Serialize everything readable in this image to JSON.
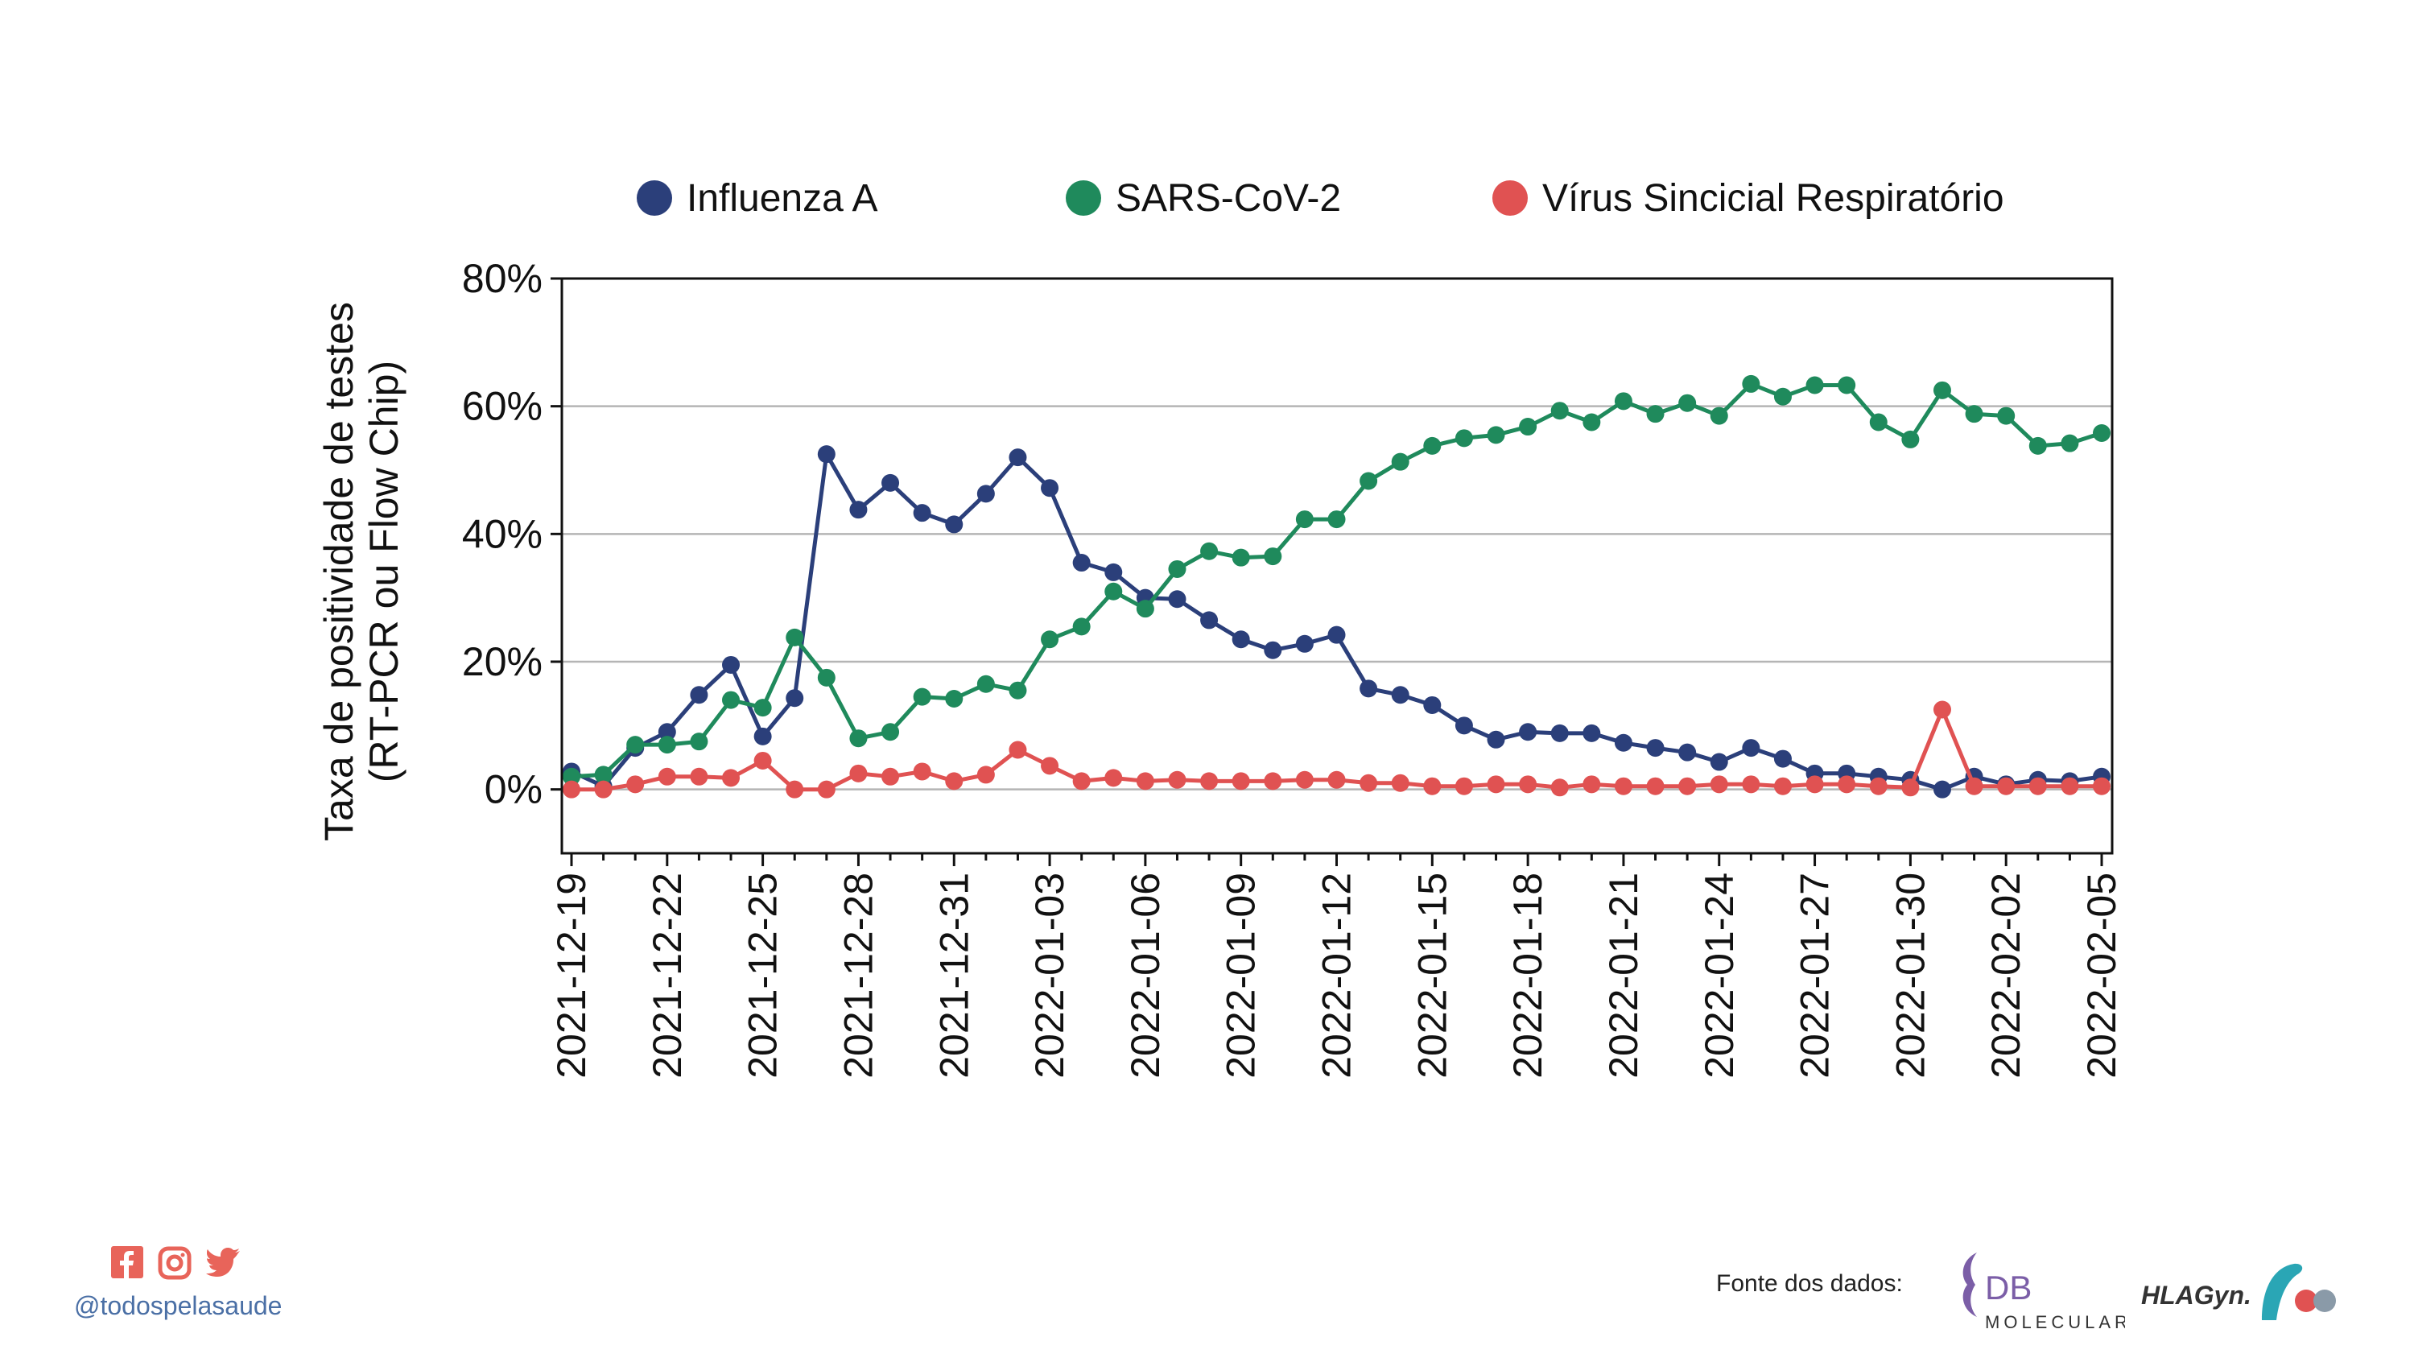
{
  "chart_data": {
    "type": "line",
    "ylabel_line1": "Taxa de positividade de testes",
    "ylabel_line2": "(RT-PCR ou Flow Chip)",
    "ylim": [
      -10,
      80
    ],
    "yticks": [
      0,
      20,
      40,
      60,
      80
    ],
    "ytick_labels": [
      "0%",
      "20%",
      "40%",
      "60%",
      "80%"
    ],
    "grid": "horizontal",
    "legend_position": "top",
    "x": [
      "2021-12-19",
      "2021-12-20",
      "2021-12-21",
      "2021-12-22",
      "2021-12-23",
      "2021-12-24",
      "2021-12-25",
      "2021-12-26",
      "2021-12-27",
      "2021-12-28",
      "2021-12-29",
      "2021-12-30",
      "2021-12-31",
      "2022-01-01",
      "2022-01-02",
      "2022-01-03",
      "2022-01-04",
      "2022-01-05",
      "2022-01-06",
      "2022-01-07",
      "2022-01-08",
      "2022-01-09",
      "2022-01-10",
      "2022-01-11",
      "2022-01-12",
      "2022-01-13",
      "2022-01-14",
      "2022-01-15",
      "2022-01-16",
      "2022-01-17",
      "2022-01-18",
      "2022-01-19",
      "2022-01-20",
      "2022-01-21",
      "2022-01-22",
      "2022-01-23",
      "2022-01-24",
      "2022-01-25",
      "2022-01-26",
      "2022-01-27",
      "2022-01-28",
      "2022-01-29",
      "2022-01-30",
      "2022-01-31",
      "2022-02-01",
      "2022-02-02",
      "2022-02-03",
      "2022-02-04",
      "2022-02-05"
    ],
    "xtick_labels": [
      "2021-12-19",
      "2021-12-22",
      "2021-12-25",
      "2021-12-28",
      "2021-12-31",
      "2022-01-03",
      "2022-01-06",
      "2022-01-09",
      "2022-01-12",
      "2022-01-15",
      "2022-01-18",
      "2022-01-21",
      "2022-01-24",
      "2022-01-27",
      "2022-01-30",
      "2022-02-02",
      "2022-02-05"
    ],
    "series": [
      {
        "name": "Influenza A",
        "color": "#2b3f7a",
        "values": [
          2.8,
          0.5,
          6.5,
          9.0,
          14.8,
          19.5,
          8.3,
          14.3,
          52.5,
          43.8,
          48.0,
          43.3,
          41.5,
          46.3,
          52.0,
          47.2,
          35.5,
          34.0,
          30.0,
          29.8,
          26.5,
          23.5,
          21.8,
          22.8,
          24.2,
          15.8,
          14.8,
          13.2,
          10.0,
          7.8,
          9.0,
          8.8,
          8.8,
          7.3,
          6.5,
          5.8,
          4.3,
          6.5,
          4.8,
          2.5,
          2.5,
          2.0,
          1.5,
          0.0,
          2.0,
          0.8,
          1.5,
          1.3,
          2.0
        ]
      },
      {
        "name": "SARS-CoV-2",
        "color": "#1f8a5c",
        "values": [
          2.0,
          2.3,
          7.0,
          7.0,
          7.5,
          14.0,
          12.8,
          23.8,
          17.5,
          8.0,
          9.0,
          14.5,
          14.2,
          16.5,
          15.5,
          23.5,
          25.5,
          31.0,
          28.3,
          34.5,
          37.3,
          36.3,
          36.5,
          42.3,
          42.3,
          48.3,
          51.3,
          53.8,
          55.0,
          55.5,
          56.8,
          59.3,
          57.5,
          60.8,
          58.8,
          60.5,
          58.5,
          63.5,
          61.5,
          63.3,
          63.3,
          57.5,
          54.8,
          62.5,
          58.8,
          58.5,
          53.8,
          54.2,
          55.8
        ]
      },
      {
        "name": "Vírus Sincicial Respiratório",
        "color": "#e05252",
        "values": [
          0.0,
          0.0,
          0.8,
          2.0,
          2.0,
          1.8,
          4.5,
          0.0,
          0.0,
          2.5,
          2.0,
          2.8,
          1.3,
          2.3,
          6.2,
          3.7,
          1.3,
          1.8,
          1.3,
          1.5,
          1.3,
          1.3,
          1.3,
          1.5,
          1.5,
          1.0,
          1.0,
          0.5,
          0.5,
          0.8,
          0.8,
          0.3,
          0.8,
          0.5,
          0.5,
          0.5,
          0.8,
          0.8,
          0.5,
          0.8,
          0.8,
          0.5,
          0.3,
          12.5,
          0.5,
          0.5,
          0.5,
          0.5,
          0.5
        ]
      }
    ]
  },
  "footer": {
    "social_handle": "@todospelasaude",
    "social_icons": [
      "facebook-icon",
      "instagram-icon",
      "twitter-icon"
    ],
    "social_color": "#e8645a",
    "source_label": "Fonte dos dados:",
    "logo_db_text": "DB",
    "logo_db_subtext": "MOLECULAR",
    "logo_hla_text": "HLAGyn."
  }
}
